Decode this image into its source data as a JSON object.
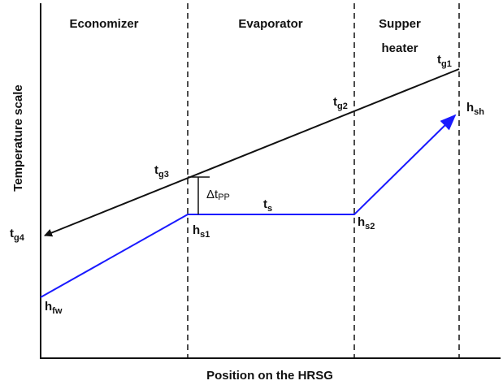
{
  "sections": [
    "Economizer",
    "Evaporator",
    "Supper",
    "heater"
  ],
  "axes": {
    "y_label": "Temperature scale",
    "x_label": "Position on the HRSG"
  },
  "points": [
    {
      "text": "t",
      "sub": "g1"
    },
    {
      "text": "t",
      "sub": "g2"
    },
    {
      "text": "t",
      "sub": "g3"
    },
    {
      "text": "t",
      "sub": "g4"
    },
    {
      "text": "h",
      "sub": "sh"
    },
    {
      "text": "Δt",
      "sub": "PP"
    },
    {
      "text": "t",
      "sub": "s"
    },
    {
      "text": "h",
      "sub": "s1"
    },
    {
      "text": "h",
      "sub": "s2"
    },
    {
      "text": "h",
      "sub": "fw"
    }
  ]
}
